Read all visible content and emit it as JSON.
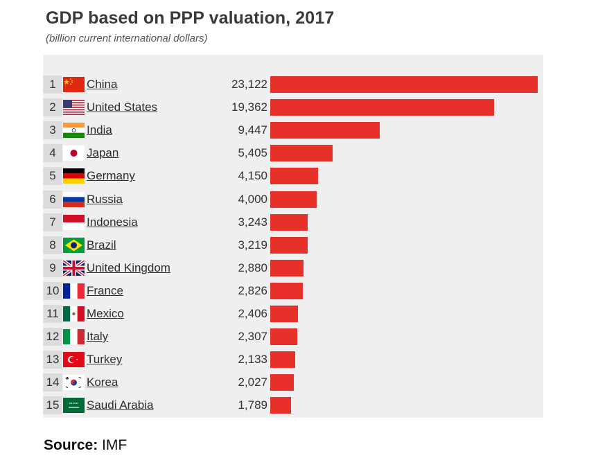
{
  "header": {
    "title": "GDP based on PPP valuation, 2017",
    "subtitle": "(billion current international dollars)"
  },
  "chart_data": {
    "type": "bar",
    "orientation": "horizontal",
    "title": "GDP based on PPP valuation, 2017",
    "subtitle": "(billion current international dollars)",
    "xlim": [
      0,
      23122
    ],
    "categories": [
      "China",
      "United States",
      "India",
      "Japan",
      "Germany",
      "Russia",
      "Indonesia",
      "Brazil",
      "United Kingdom",
      "France",
      "Mexico",
      "Italy",
      "Turkey",
      "Korea",
      "Saudi Arabia"
    ],
    "ranks": [
      "1",
      "2",
      "3",
      "4",
      "5",
      "6",
      "7",
      "8",
      "9",
      "10",
      "11",
      "12",
      "13",
      "14",
      "15"
    ],
    "values": [
      23122,
      19362,
      9447,
      5405,
      4150,
      4000,
      3243,
      3219,
      2880,
      2826,
      2406,
      2307,
      2133,
      2027,
      1789
    ],
    "value_labels": [
      "23,122",
      "19,362",
      "9,447",
      "5,405",
      "4,150",
      "4,000",
      "3,243",
      "3,219",
      "2,880",
      "2,826",
      "2,406",
      "2,307",
      "2,133",
      "2,027",
      "1,789"
    ],
    "flags": [
      "china-flag-icon",
      "united-states-flag-icon",
      "india-flag-icon",
      "japan-flag-icon",
      "germany-flag-icon",
      "russia-flag-icon",
      "indonesia-flag-icon",
      "brazil-flag-icon",
      "united-kingdom-flag-icon",
      "france-flag-icon",
      "mexico-flag-icon",
      "italy-flag-icon",
      "turkey-flag-icon",
      "korea-flag-icon",
      "saudi-arabia-flag-icon"
    ],
    "bar_color": "#e8302a"
  },
  "footer": {
    "source_label": "Source:",
    "source_value": "IMF"
  }
}
